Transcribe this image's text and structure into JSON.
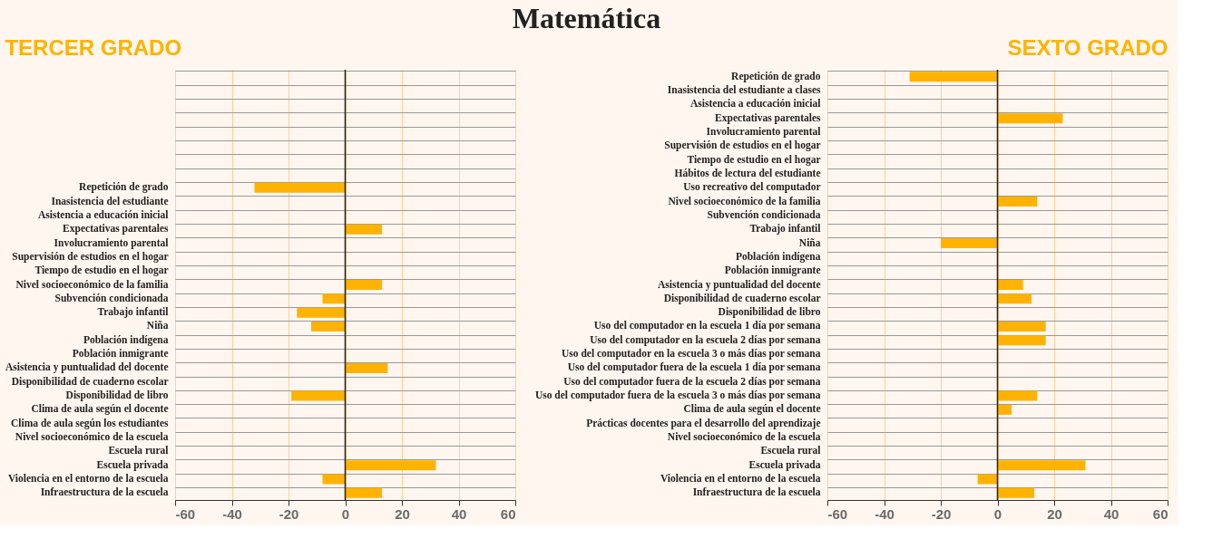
{
  "chart_data": [
    {
      "type": "bar",
      "orientation": "horizontal",
      "title": "TERCER GRADO",
      "annotations": [
        "Matemática"
      ],
      "categories": [
        null,
        null,
        null,
        null,
        null,
        null,
        null,
        null,
        "Repetición de grado",
        "Inasistencia del estudiante",
        "Asistencia a educación inicial",
        "Expectativas parentales",
        "Involucramiento parental",
        "Supervisión de estudios en el hogar",
        "Tiempo de estudio en el hogar",
        "Nivel socioeconómico de la familia",
        "Subvención condicionada",
        "Trabajo infantil",
        "Niña",
        "Población indígena",
        "Población inmigrante",
        "Asistencia y puntualidad del docente",
        "Disponibilidad de cuaderno escolar",
        "Disponibilidad de libro",
        "Clima de aula según el docente",
        "Clima de aula según los estudiantes",
        "Nivel socioeconómico de la escuela",
        "Escuela rural",
        "Escuela privada",
        "Violencia en el entorno de la escuela",
        "Infraestructura de la escuela"
      ],
      "series": [
        {
          "color": "#ffb300",
          "values": [
            null,
            null,
            null,
            null,
            null,
            null,
            null,
            null,
            -32,
            null,
            null,
            13,
            null,
            null,
            null,
            13,
            -8,
            -17,
            -12,
            null,
            null,
            15,
            null,
            -19,
            null,
            null,
            null,
            null,
            32,
            -8,
            13
          ]
        }
      ],
      "xlim": [
        -60,
        60
      ],
      "xticks": [
        -60,
        -40,
        -20,
        0,
        20,
        40,
        60
      ],
      "grid": true,
      "ref_lines": [
        {
          "axis": "x",
          "value": 0,
          "color": "#222222"
        }
      ]
    },
    {
      "type": "bar",
      "orientation": "horizontal",
      "title": "SEXTO GRADO",
      "categories": [
        "Repetición de grado",
        "Inasistencia del estudiante a clases",
        "Asistencia a educación inicial",
        "Expectativas parentales",
        "Involucramiento parental",
        "Supervisión de estudios en el hogar",
        "Tiempo de estudio en el hogar",
        "Hábitos de lectura del estudiante",
        "Uso recreativo del computador",
        "Nivel socioeconómico de la familia",
        "Subvención condicionada",
        "Trabajo infantil",
        "Niña",
        "Población indígena",
        "Población inmigrante",
        "Asistencia y puntualidad del docente",
        "Disponibilidad de cuaderno escolar",
        "Disponibilidad de libro",
        "Uso del computador en la escuela 1 día por semana",
        "Uso del computador en la escuela  2 días por semana",
        "Uso del computador en la escuela 3 o más días por semana",
        "Uso del computador fuera de la escuela 1 día por semana",
        "Uso del computador fuera de la escuela  2 días por semana",
        "Uso del computador fuera de la escuela 3 o más días por semana",
        "Clima de aula según el docente",
        "Prácticas docentes para el desarrollo del aprendizaje",
        "Nivel socioeconómico de la escuela",
        "Escuela rural",
        "Escuela privada",
        "Violencia en el entorno de la escuela",
        "Infraestructura de la escuela"
      ],
      "series": [
        {
          "color": "#ffb300",
          "values": [
            -31,
            null,
            null,
            23,
            null,
            null,
            null,
            null,
            null,
            14,
            null,
            null,
            -20,
            null,
            null,
            9,
            12,
            null,
            17,
            17,
            null,
            null,
            null,
            14,
            5,
            null,
            null,
            null,
            31,
            -7,
            13
          ]
        }
      ],
      "xlim": [
        -60,
        60
      ],
      "xticks": [
        -60,
        -40,
        -20,
        0,
        20,
        40,
        60
      ],
      "grid": true,
      "ref_lines": [
        {
          "axis": "x",
          "value": 0,
          "color": "#222222"
        }
      ]
    }
  ]
}
